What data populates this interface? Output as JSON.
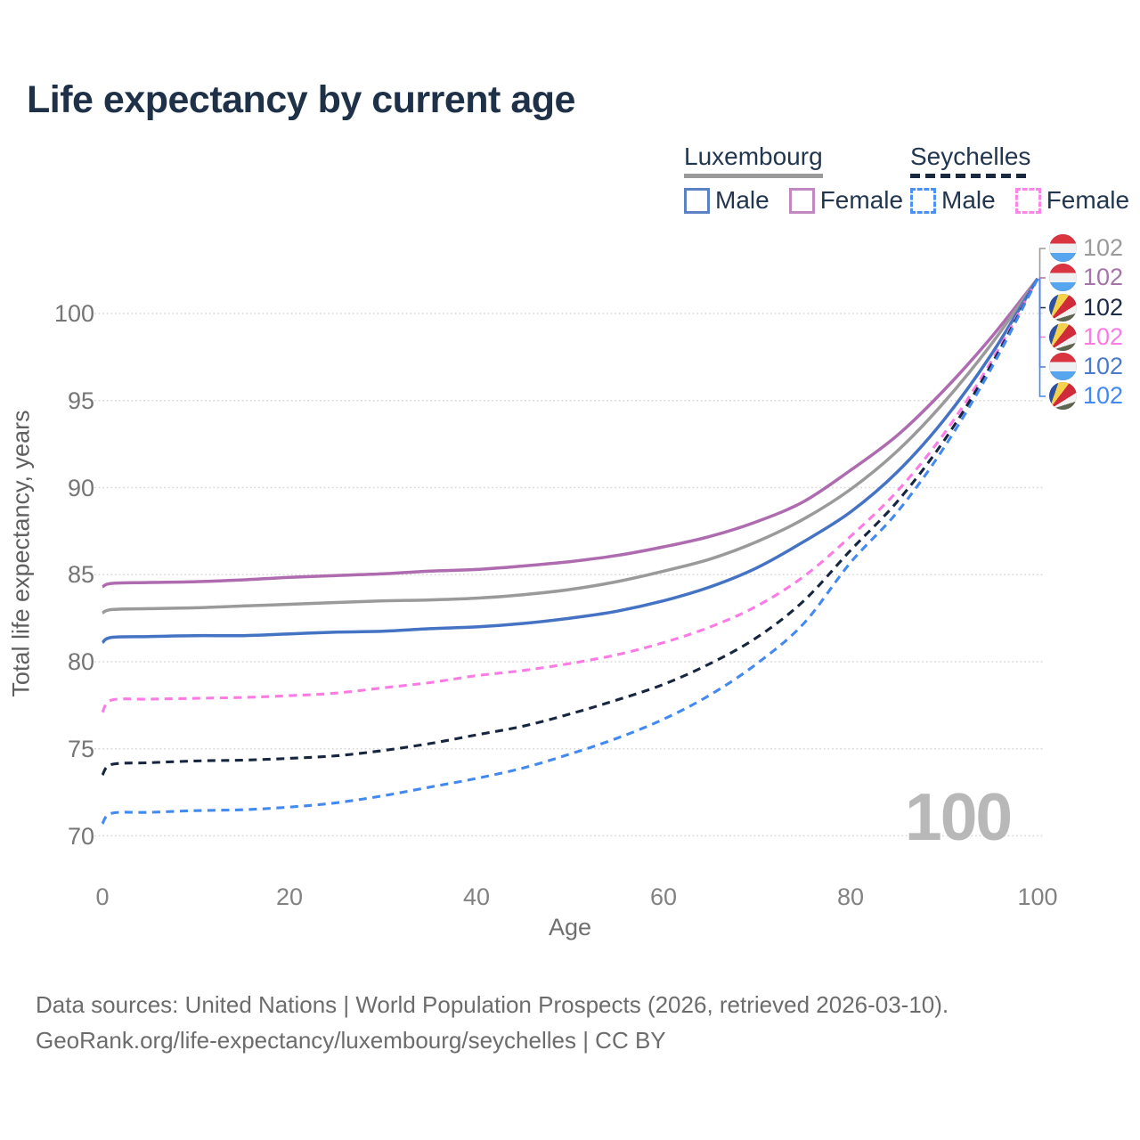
{
  "title": "Life expectancy by current age",
  "watermark": "100",
  "legend": {
    "groups": [
      {
        "country": "Luxembourg",
        "line_style": "solid",
        "line_color": "#9a9a9a",
        "items": [
          {
            "label": "Male",
            "swatch_color": "#5b82c4",
            "swatch_style": "solid"
          },
          {
            "label": "Female",
            "swatch_color": "#c289c0",
            "swatch_style": "solid"
          }
        ]
      },
      {
        "country": "Seychelles",
        "line_style": "dashed",
        "line_color": "#1b2940",
        "items": [
          {
            "label": "Male",
            "swatch_color": "#4a90f5",
            "swatch_style": "dashed"
          },
          {
            "label": "Female",
            "swatch_color": "#fc86e8",
            "swatch_style": "dashed"
          }
        ]
      }
    ]
  },
  "end_labels": [
    {
      "flag": "luxembourg",
      "value": "102",
      "color": "#9a9a9a"
    },
    {
      "flag": "luxembourg",
      "value": "102",
      "color": "#a674a9"
    },
    {
      "flag": "seychelles",
      "value": "102",
      "color": "#1e2b45"
    },
    {
      "flag": "seychelles",
      "value": "102",
      "color": "#fb7be5"
    },
    {
      "flag": "luxembourg",
      "value": "102",
      "color": "#4b7ac6"
    },
    {
      "flag": "seychelles",
      "value": "102",
      "color": "#4289f0"
    }
  ],
  "footer": {
    "line1": "Data sources: United Nations | World Population Prospects (2026, retrieved 2026-03-10).",
    "line2": "GeoRank.org/life-expectancy/luxembourg/seychelles | CC BY"
  },
  "chart_data": {
    "type": "line",
    "title": "Life expectancy by current age",
    "xlabel": "Age",
    "ylabel": "Total life expectancy, years",
    "xlim": [
      0,
      100
    ],
    "ylim": [
      69.5,
      102.5
    ],
    "x_ticks": [
      0,
      20,
      40,
      60,
      80,
      100
    ],
    "y_ticks": [
      70,
      75,
      80,
      85,
      90,
      95,
      100
    ],
    "grid": "horizontal-dotted",
    "legend_position": "top-right",
    "ages": [
      0,
      1,
      5,
      10,
      15,
      20,
      25,
      30,
      35,
      40,
      45,
      50,
      55,
      60,
      65,
      70,
      75,
      80,
      85,
      90,
      95,
      100
    ],
    "series": [
      {
        "name": "Luxembourg Female",
        "country": "Luxembourg",
        "sex": "Female",
        "style": "solid",
        "color": "#ae6bb0",
        "end_value": 102,
        "values": [
          84.3,
          84.5,
          84.55,
          84.6,
          84.7,
          84.85,
          84.95,
          85.05,
          85.2,
          85.3,
          85.5,
          85.75,
          86.1,
          86.6,
          87.2,
          88.05,
          89.2,
          91.0,
          93.0,
          95.6,
          98.6,
          102
        ]
      },
      {
        "name": "Luxembourg Both sexes",
        "country": "Luxembourg",
        "sex": "Both",
        "style": "solid",
        "color": "#9a9a9a",
        "end_value": 102,
        "values": [
          82.8,
          83.0,
          83.05,
          83.1,
          83.2,
          83.3,
          83.4,
          83.5,
          83.55,
          83.65,
          83.85,
          84.15,
          84.6,
          85.2,
          85.9,
          86.9,
          88.2,
          89.9,
          92.1,
          94.9,
          98.2,
          102
        ]
      },
      {
        "name": "Luxembourg Male",
        "country": "Luxembourg",
        "sex": "Male",
        "style": "solid",
        "color": "#4473c4",
        "end_value": 102,
        "values": [
          81.1,
          81.4,
          81.45,
          81.5,
          81.5,
          81.6,
          81.7,
          81.75,
          81.9,
          82.0,
          82.2,
          82.5,
          82.9,
          83.5,
          84.3,
          85.4,
          86.9,
          88.6,
          90.9,
          93.9,
          97.6,
          102
        ]
      },
      {
        "name": "Seychelles Female",
        "country": "Seychelles",
        "sex": "Female",
        "style": "dashed",
        "color": "#fb7be5",
        "end_value": 102,
        "values": [
          77.1,
          77.8,
          77.85,
          77.9,
          77.95,
          78.05,
          78.2,
          78.5,
          78.8,
          79.2,
          79.5,
          79.9,
          80.4,
          81.1,
          82.0,
          83.2,
          84.9,
          87.2,
          89.8,
          93.1,
          97.2,
          102
        ]
      },
      {
        "name": "Seychelles Both sexes",
        "country": "Seychelles",
        "sex": "Both",
        "style": "dashed",
        "color": "#17263f",
        "end_value": 102,
        "values": [
          73.5,
          74.1,
          74.2,
          74.3,
          74.35,
          74.45,
          74.6,
          74.9,
          75.3,
          75.8,
          76.3,
          77.0,
          77.8,
          78.7,
          79.9,
          81.4,
          83.5,
          86.4,
          89.2,
          92.7,
          97.0,
          102
        ]
      },
      {
        "name": "Seychelles Male",
        "country": "Seychelles",
        "sex": "Male",
        "style": "dashed",
        "color": "#4289f0",
        "end_value": 102,
        "values": [
          70.7,
          71.3,
          71.35,
          71.45,
          71.5,
          71.65,
          71.9,
          72.3,
          72.8,
          73.3,
          73.9,
          74.7,
          75.6,
          76.7,
          78.1,
          79.9,
          82.2,
          85.7,
          88.6,
          92.3,
          96.8,
          102
        ]
      }
    ]
  }
}
